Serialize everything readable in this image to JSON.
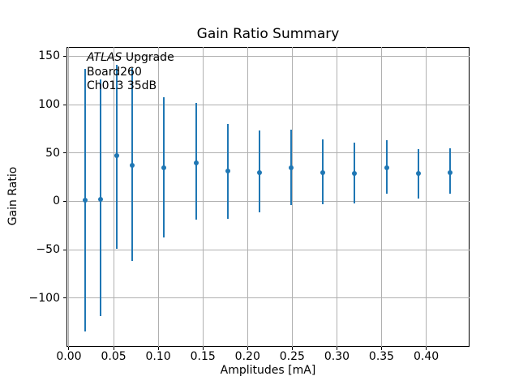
{
  "chart_data": {
    "type": "scatter",
    "subtype": "errorbar",
    "title": "Gain Ratio Summary",
    "xlabel": "Amplitudes [mA]",
    "ylabel": "Gain Ratio",
    "annotation": {
      "line1_italic": "ATLAS",
      "line1_rest": " Upgrade",
      "line2": "Board260",
      "line3": "Ch013 35dB"
    },
    "series": [
      {
        "name": "gain-ratio-vs-amplitude",
        "color": "#1f77b4",
        "marker": "circle",
        "x": [
          0.0178,
          0.0355,
          0.0533,
          0.0711,
          0.1066,
          0.1422,
          0.1777,
          0.2133,
          0.2488,
          0.2844,
          0.3199,
          0.3555,
          0.3911,
          0.4266
        ],
        "y": [
          1,
          2,
          47,
          37,
          35,
          40,
          31,
          30,
          35,
          30,
          29,
          35,
          29,
          30
        ],
        "y_err_low": [
          -135,
          -119,
          -49,
          -62,
          -37,
          -19,
          -18,
          -11,
          -4,
          -3,
          -2,
          8,
          3,
          8
        ],
        "y_err_high": [
          137,
          126,
          141,
          138,
          108,
          102,
          80,
          73,
          74,
          64,
          61,
          63,
          54,
          55
        ]
      }
    ],
    "x_ticks": {
      "values": [
        0.0,
        0.05,
        0.1,
        0.15,
        0.2,
        0.25,
        0.3,
        0.35,
        0.4
      ],
      "labels": [
        "0.00",
        "0.05",
        "0.10",
        "0.15",
        "0.20",
        "0.25",
        "0.30",
        "0.35",
        "0.40"
      ]
    },
    "y_ticks": {
      "values": [
        150,
        100,
        50,
        0,
        -50,
        -100
      ],
      "labels": [
        "150",
        "100",
        "50",
        "0",
        "−50",
        "−100"
      ]
    },
    "xlim": [
      -0.0027,
      0.4485
    ],
    "ylim": [
      -150.5,
      159.6
    ],
    "grid": true,
    "grid_color": "#b0b0b0",
    "axis_color": "#000000",
    "background_color": "#ffffff",
    "legend": null
  }
}
